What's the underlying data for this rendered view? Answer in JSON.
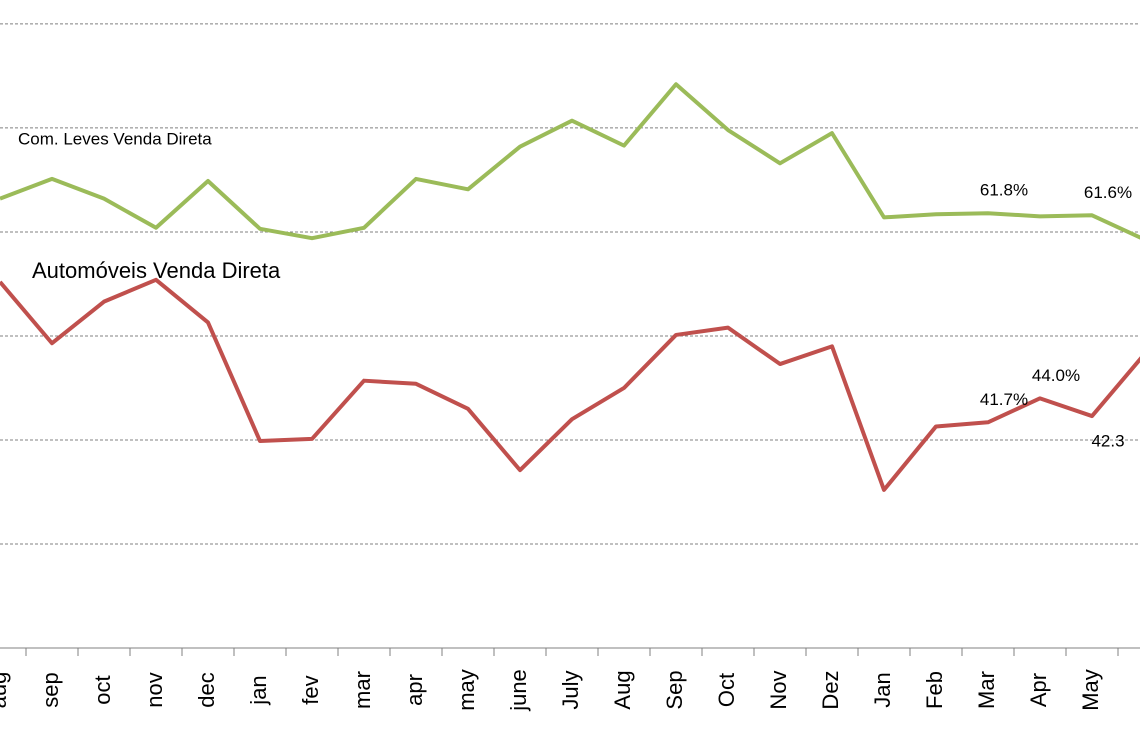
{
  "chart_data": {
    "type": "line",
    "categories": [
      "aug",
      "sep",
      "oct",
      "nov",
      "dec",
      "jan",
      "fev",
      "mar",
      "apr",
      "may",
      "june",
      "July",
      "Aug",
      "Sep",
      "Oct",
      "Nov",
      "Dez",
      "Jan",
      "Feb",
      "Mar",
      "Apr",
      "May",
      null
    ],
    "series": [
      {
        "name": "Com. Leves Venda Direta",
        "color": "#9bbb59",
        "values": [
          63.2,
          65.1,
          63.2,
          60.4,
          64.9,
          60.3,
          59.4,
          60.4,
          65.1,
          64.1,
          68.2,
          70.7,
          68.3,
          74.2,
          69.8,
          66.6,
          69.5,
          61.4,
          61.7,
          61.8,
          61.5,
          61.6,
          59.3
        ],
        "value_labels": [
          null,
          null,
          null,
          null,
          null,
          null,
          null,
          null,
          null,
          null,
          null,
          null,
          null,
          null,
          null,
          null,
          null,
          null,
          null,
          "61.8%",
          null,
          "61.6%",
          null
        ]
      },
      {
        "name": "Automóveis Venda Direta",
        "color": "#c0504d",
        "values": [
          55.2,
          49.3,
          53.3,
          55.4,
          51.3,
          39.9,
          40.1,
          45.7,
          45.4,
          43.0,
          37.1,
          42.0,
          45.0,
          50.1,
          50.8,
          47.3,
          49.0,
          35.2,
          41.3,
          41.7,
          44.0,
          42.3,
          48.2
        ],
        "value_labels": [
          null,
          null,
          null,
          null,
          null,
          null,
          null,
          null,
          null,
          null,
          null,
          null,
          null,
          null,
          null,
          null,
          null,
          null,
          null,
          "41.7%",
          "44.0%",
          "42.3",
          null
        ]
      }
    ],
    "ylim": [
      20,
      82.3
    ],
    "yticks": [
      20,
      30,
      40,
      50,
      60,
      70,
      80
    ],
    "grid": true
  }
}
